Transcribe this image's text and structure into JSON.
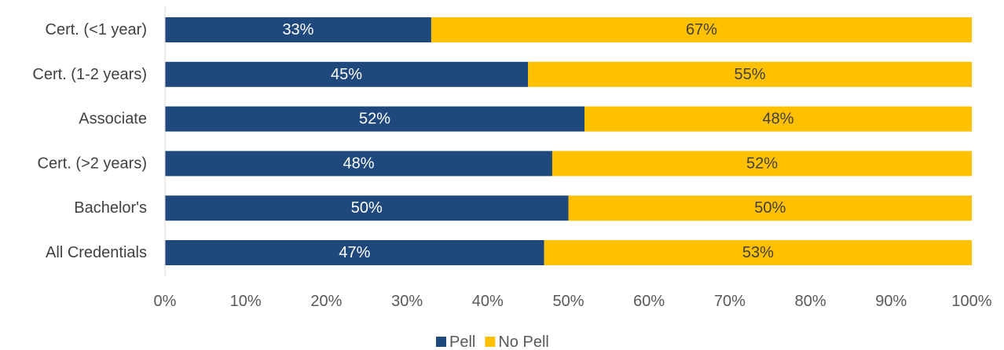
{
  "chart_data": {
    "type": "bar",
    "orientation": "horizontal",
    "stacked": true,
    "categories": [
      "Cert. (<1 year)",
      "Cert. (1-2 years)",
      "Associate",
      "Cert. (>2 years)",
      "Bachelor's",
      "All Credentials"
    ],
    "series": [
      {
        "name": "Pell",
        "color": "#1f497d",
        "label_color": "#ffffff",
        "values": [
          33,
          45,
          52,
          48,
          50,
          47
        ],
        "labels": [
          "33%",
          "45%",
          "52%",
          "48%",
          "50%",
          "47%"
        ]
      },
      {
        "name": "No Pell",
        "color": "#ffc000",
        "label_color": "#404040",
        "values": [
          67,
          55,
          48,
          52,
          50,
          53
        ],
        "labels": [
          "67%",
          "55%",
          "48%",
          "52%",
          "50%",
          "53%"
        ]
      }
    ],
    "xlim": [
      0,
      100
    ],
    "xticks": [
      0,
      10,
      20,
      30,
      40,
      50,
      60,
      70,
      80,
      90,
      100
    ],
    "xtick_labels": [
      "0%",
      "10%",
      "20%",
      "30%",
      "40%",
      "50%",
      "60%",
      "70%",
      "80%",
      "90%",
      "100%"
    ],
    "gridlines": false,
    "legend_position": "bottom"
  }
}
